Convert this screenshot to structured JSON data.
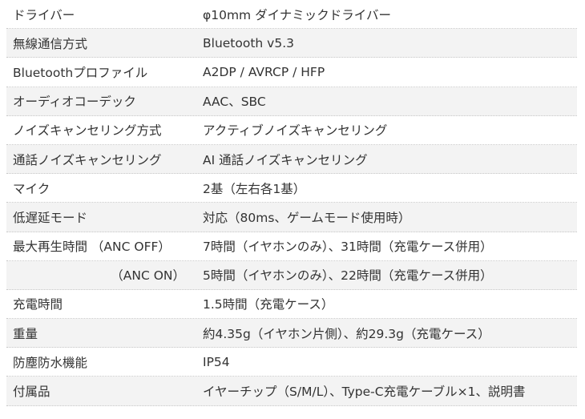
{
  "specs": [
    {
      "label": "ドライバー",
      "value": "φ10mm ダイナミックドライバー"
    },
    {
      "label": "無線通信方式",
      "value": "Bluetooth v5.3"
    },
    {
      "label": "Bluetoothプロファイル",
      "value": "A2DP / AVRCP / HFP"
    },
    {
      "label": "オーディオコーデック",
      "value": "AAC、SBC"
    },
    {
      "label": "ノイズキャンセリング方式",
      "value": "アクティブノイズキャンセリング"
    },
    {
      "label": "通話ノイズキャンセリング",
      "value": "AI 通話ノイズキャンセリング"
    },
    {
      "label": "マイク",
      "value": "2基（左右各1基）"
    },
    {
      "label": "低遅延モード",
      "value": "対応（80ms、ゲームモード使用時）"
    },
    {
      "label": "最大再生時間 （ANC OFF）",
      "value": "7時間（イヤホンのみ）、31時間（充電ケース併用）"
    },
    {
      "label": "（ANC ON）",
      "value": "5時間（イヤホンのみ）、22時間（充電ケース併用）"
    },
    {
      "label": "充電時間",
      "value": "1.5時間（充電ケース）"
    },
    {
      "label": "重量",
      "value": "約4.35g（イヤホン片側）、約29.3g（充電ケース）"
    },
    {
      "label": "防塵防水機能",
      "value": "IP54"
    },
    {
      "label": "付属品",
      "value": "イヤーチップ（S/M/L）、Type-C充電ケーブル×1、説明書"
    }
  ]
}
